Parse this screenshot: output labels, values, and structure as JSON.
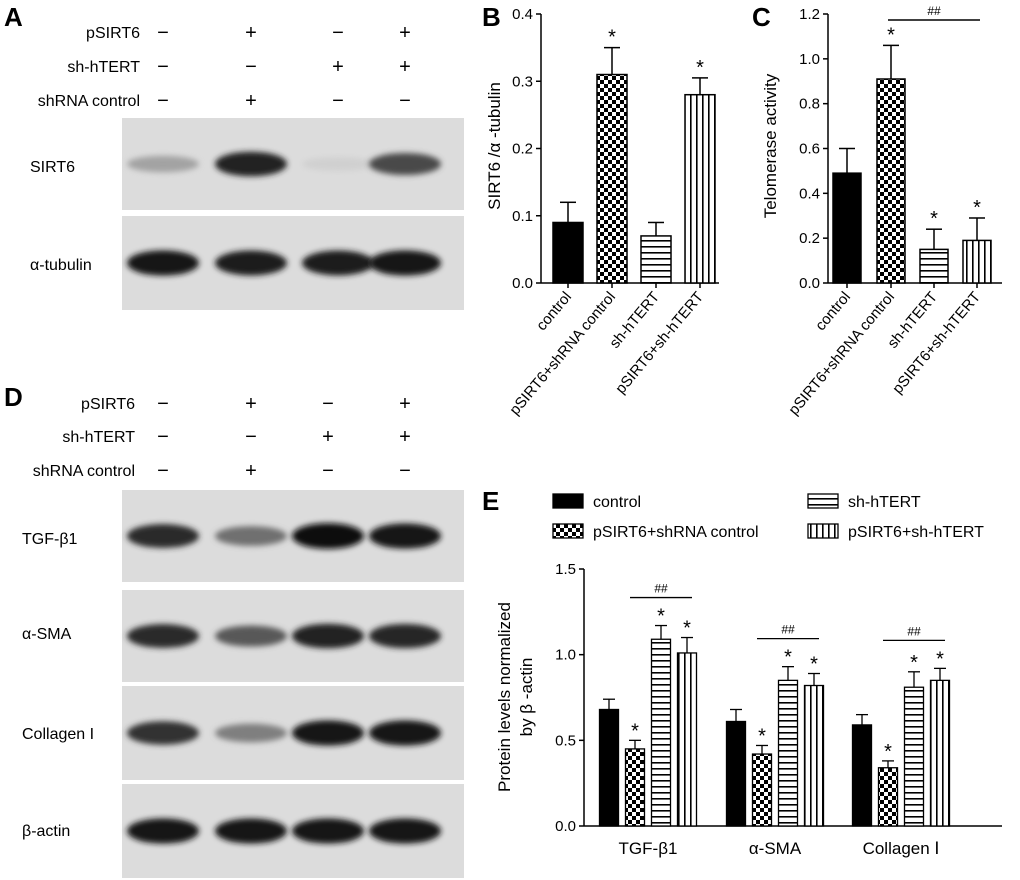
{
  "panels": [
    "A",
    "B",
    "C",
    "D",
    "E"
  ],
  "blot_top": {
    "row_labels": [
      "pSIRT6",
      "sh-hTERT",
      "shRNA control"
    ],
    "signs": [
      [
        "−",
        "+",
        "−",
        "+"
      ],
      [
        "−",
        "−",
        "+",
        "+"
      ],
      [
        "−",
        "+",
        "−",
        "−"
      ]
    ],
    "bands": [
      {
        "label": "SIRT6",
        "intensity": [
          0.32,
          0.9,
          0.12,
          0.72
        ]
      },
      {
        "label": "α-tubulin",
        "intensity": [
          0.95,
          0.92,
          0.92,
          0.95
        ]
      }
    ]
  },
  "blot_bottom": {
    "row_labels": [
      "pSIRT6",
      "sh-hTERT",
      "shRNA control"
    ],
    "signs": [
      [
        "−",
        "+",
        "−",
        "+"
      ],
      [
        "−",
        "−",
        "+",
        "+"
      ],
      [
        "−",
        "+",
        "−",
        "−"
      ]
    ],
    "bands": [
      {
        "label": "TGF-β1",
        "intensity": [
          0.85,
          0.55,
          0.98,
          0.95
        ]
      },
      {
        "label": "α-SMA",
        "intensity": [
          0.85,
          0.65,
          0.9,
          0.88
        ]
      },
      {
        "label": "Collagen I",
        "intensity": [
          0.82,
          0.48,
          0.95,
          0.95
        ]
      },
      {
        "label": "β-actin",
        "intensity": [
          0.95,
          0.95,
          0.95,
          0.95
        ]
      }
    ]
  },
  "chart_data": [
    {
      "type": "bar",
      "panel": "B",
      "categories": [
        "control",
        "pSIRT6+shRNA control",
        "sh-hTERT",
        "pSIRT6+sh-hTERT"
      ],
      "values": [
        0.09,
        0.31,
        0.07,
        0.28
      ],
      "errors": [
        0.03,
        0.04,
        0.02,
        0.025
      ],
      "annotations": [
        "",
        "*",
        "",
        "*"
      ],
      "ylabel": "SIRT6 /α -tubulin",
      "ylim": [
        0,
        0.4
      ],
      "yticks": [
        "0.0",
        "0.1",
        "0.2",
        "0.3",
        "0.4"
      ],
      "patterns": [
        "solid",
        "checker",
        "hlines",
        "vlines"
      ]
    },
    {
      "type": "bar",
      "panel": "C",
      "categories": [
        "control",
        "pSIRT6+shRNA control",
        "sh-hTERT",
        "pSIRT6+sh-hTERT"
      ],
      "values": [
        0.49,
        0.91,
        0.15,
        0.19
      ],
      "errors": [
        0.11,
        0.15,
        0.09,
        0.1
      ],
      "annotations": [
        "",
        "*",
        "*",
        "*"
      ],
      "bracket": {
        "from": 1,
        "to": 3,
        "label": "##"
      },
      "ylabel": "Telomerase activity",
      "ylim": [
        0,
        1.2
      ],
      "yticks": [
        "0.0",
        "0.2",
        "0.4",
        "0.6",
        "0.8",
        "1.0",
        "1.2"
      ],
      "patterns": [
        "solid",
        "checker",
        "hlines",
        "vlines"
      ]
    },
    {
      "type": "bar",
      "panel": "E",
      "categories": [
        "TGF-β1",
        "α-SMA",
        "Collagen Ⅰ"
      ],
      "series": [
        {
          "name": "control",
          "pattern": "solid",
          "values": [
            0.68,
            0.61,
            0.59
          ],
          "errors": [
            0.06,
            0.07,
            0.06
          ],
          "annotations": [
            "",
            "",
            ""
          ]
        },
        {
          "name": "pSIRT6+shRNA control",
          "pattern": "checker",
          "values": [
            0.45,
            0.42,
            0.34
          ],
          "errors": [
            0.05,
            0.05,
            0.04
          ],
          "annotations": [
            "*",
            "*",
            "*"
          ]
        },
        {
          "name": "sh-hTERT",
          "pattern": "hlines",
          "values": [
            1.09,
            0.85,
            0.81
          ],
          "errors": [
            0.08,
            0.08,
            0.09
          ],
          "annotations": [
            "*",
            "*",
            "*"
          ]
        },
        {
          "name": "pSIRT6+sh-hTERT",
          "pattern": "vlines",
          "values": [
            1.01,
            0.82,
            0.85
          ],
          "errors": [
            0.09,
            0.07,
            0.07
          ],
          "annotations": [
            "*",
            "*",
            "*"
          ]
        }
      ],
      "bracket_label": "##",
      "ylabel": [
        "Protein levels normalized",
        "by β -actin"
      ],
      "ylim": [
        0,
        1.5
      ],
      "yticks": [
        "0.0",
        "0.5",
        "1.0",
        "1.5"
      ],
      "legend_position": "top"
    }
  ]
}
